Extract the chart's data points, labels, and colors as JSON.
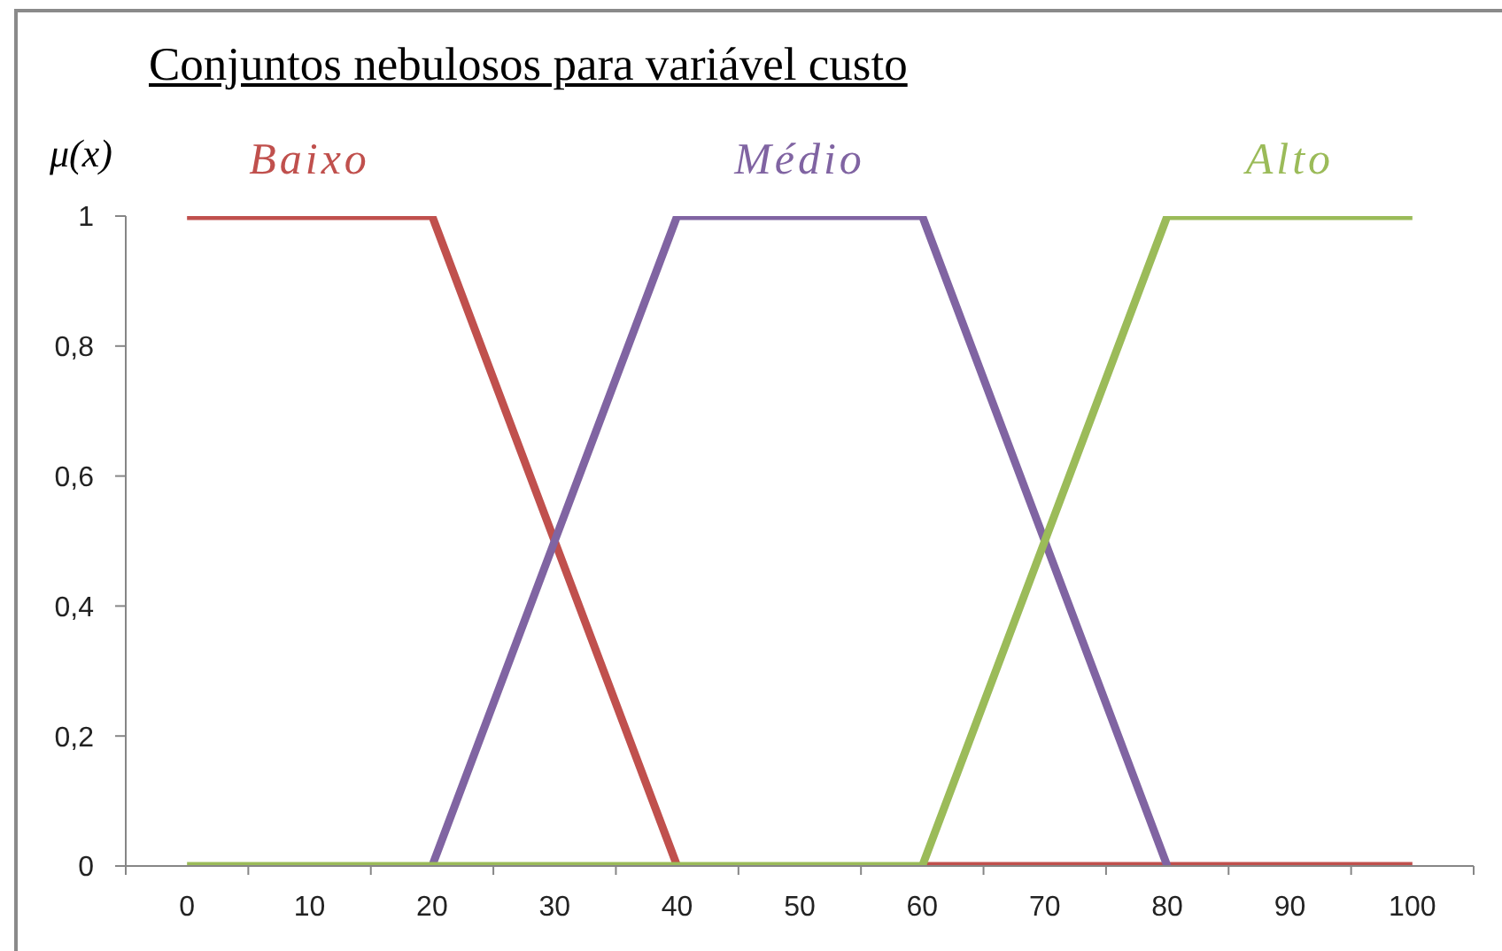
{
  "chart_data": {
    "type": "line",
    "title": "Conjuntos nebulosos para variável custo",
    "ylabel": "μ(x)",
    "categories": [
      "0",
      "10",
      "20",
      "30",
      "40",
      "50",
      "60",
      "70",
      "80",
      "90",
      "100"
    ],
    "series": [
      {
        "name": "Baixo",
        "color": "#c0504d",
        "values": [
          1,
          1,
          1,
          0.5,
          0,
          null,
          0,
          0,
          0,
          0,
          0
        ]
      },
      {
        "name": "Médio",
        "color": "#8064a2",
        "values": [
          null,
          null,
          0,
          0.5,
          1,
          1,
          1,
          0.5,
          0,
          null,
          null
        ]
      },
      {
        "name": "Alto",
        "color": "#9bbb59",
        "values": [
          0,
          0,
          0,
          0,
          0,
          0,
          0,
          0.5,
          1,
          1,
          1
        ]
      }
    ],
    "ylim": [
      0,
      1
    ],
    "yticks": [
      0,
      {
        "value": 0.2,
        "label": "0,2"
      },
      {
        "value": 0.4,
        "label": "0,4"
      },
      {
        "value": 0.6,
        "label": "0,6"
      },
      {
        "value": 0.8,
        "label": "0,8"
      },
      1
    ],
    "marker": "none",
    "line_style": "solid"
  }
}
